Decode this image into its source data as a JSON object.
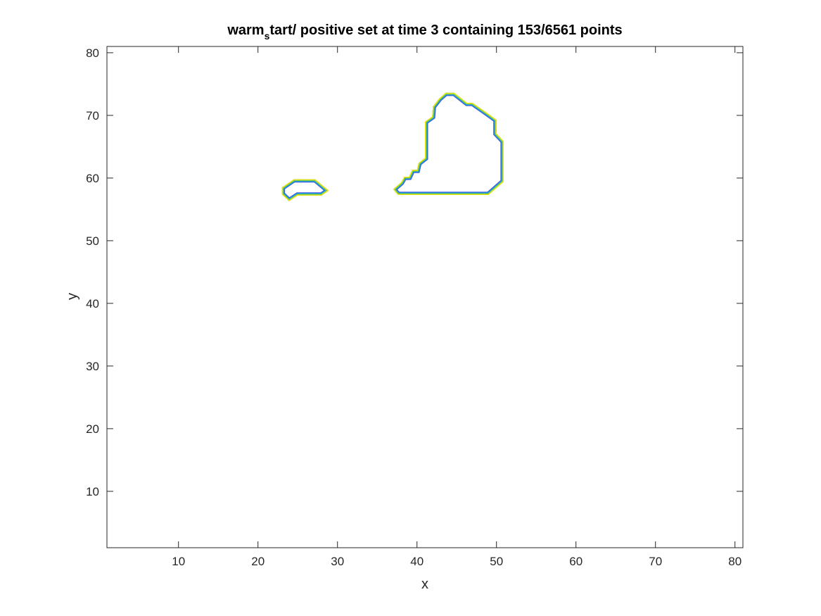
{
  "chart_data": {
    "type": "contour",
    "title": {
      "prefix": "warm",
      "subscript": "s",
      "suffix": "tart/ positive set at time 3 containing 153/6561 points"
    },
    "xlabel": "x",
    "ylabel": "y",
    "xlim": [
      1,
      81
    ],
    "ylim": [
      1,
      81
    ],
    "xticks": [
      10,
      20,
      30,
      40,
      50,
      60,
      70,
      80
    ],
    "yticks": [
      10,
      20,
      30,
      40,
      50,
      60,
      70,
      80
    ],
    "grid": false,
    "box": true,
    "contour_colors": [
      "#3c52e0",
      "#1e9cd6",
      "#3dc08a",
      "#c5cc1c",
      "#f5f00c"
    ],
    "regions": [
      {
        "points": [
          [
            23.9,
            56.3
          ],
          [
            23.0,
            57.4
          ],
          [
            23.0,
            58.5
          ],
          [
            24.5,
            59.8
          ],
          [
            27.2,
            59.8
          ],
          [
            28.9,
            58.0
          ],
          [
            28.0,
            57.2
          ],
          [
            25.0,
            57.2
          ]
        ]
      },
      {
        "points": [
          [
            37.6,
            57.3
          ],
          [
            37.0,
            58.2
          ],
          [
            38.0,
            59.3
          ],
          [
            38.4,
            60.2
          ],
          [
            39.0,
            60.2
          ],
          [
            39.4,
            61.3
          ],
          [
            40.0,
            61.3
          ],
          [
            40.2,
            62.4
          ],
          [
            41.0,
            63.2
          ],
          [
            41.0,
            69.0
          ],
          [
            41.9,
            69.8
          ],
          [
            42.0,
            71.4
          ],
          [
            42.8,
            72.7
          ],
          [
            43.6,
            73.6
          ],
          [
            44.7,
            73.6
          ],
          [
            46.3,
            72.0
          ],
          [
            47.0,
            72.0
          ],
          [
            48.8,
            70.4
          ],
          [
            50.0,
            69.3
          ],
          [
            50.0,
            67.1
          ],
          [
            50.9,
            65.9
          ],
          [
            50.9,
            59.4
          ],
          [
            49.0,
            57.3
          ]
        ]
      }
    ]
  }
}
